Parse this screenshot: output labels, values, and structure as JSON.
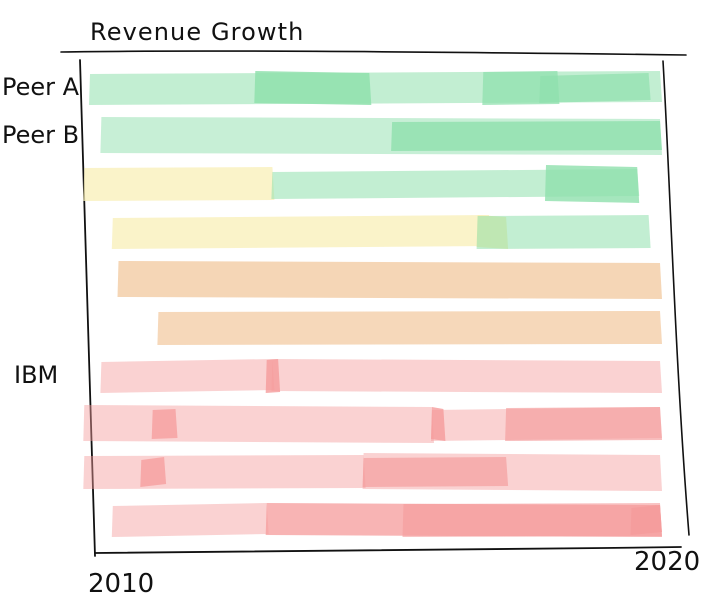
{
  "chart_data": {
    "type": "bar",
    "title": "Revenue Growth",
    "xlabel": "",
    "ylabel": "",
    "x_ticks": [
      "2010",
      "2020"
    ],
    "xlim": [
      2010,
      2020
    ],
    "row_labels": [
      {
        "row": 0,
        "label": "Peer A"
      },
      {
        "row": 1,
        "label": "Peer B"
      },
      {
        "row": 6,
        "label": "IBM"
      }
    ],
    "colors": {
      "positive": "#8fe0ad",
      "neutral": "#f8efb7",
      "warning": "#f2c89d",
      "negative": "#f59b9b",
      "axis": "#111111",
      "background": "#ffffff"
    },
    "rows": [
      {
        "row": 0,
        "segments": [
          {
            "start": 2010.0,
            "end": 2020.0,
            "tone": "positive",
            "opacity": 0.55
          },
          {
            "start": 2012.9,
            "end": 2014.9,
            "tone": "positive",
            "opacity": 0.85
          },
          {
            "start": 2016.9,
            "end": 2018.2,
            "tone": "positive",
            "opacity": 0.75
          },
          {
            "start": 2017.9,
            "end": 2019.8,
            "tone": "positive",
            "opacity": 0.7
          }
        ]
      },
      {
        "row": 1,
        "segments": [
          {
            "start": 2010.2,
            "end": 2020.0,
            "tone": "positive",
            "opacity": 0.5
          },
          {
            "start": 2015.3,
            "end": 2020.0,
            "tone": "positive",
            "opacity": 0.8
          }
        ]
      },
      {
        "row": 2,
        "segments": [
          {
            "start": 2009.9,
            "end": 2013.2,
            "tone": "neutral",
            "opacity": 0.75
          },
          {
            "start": 2013.2,
            "end": 2019.6,
            "tone": "positive",
            "opacity": 0.55
          },
          {
            "start": 2018.0,
            "end": 2019.6,
            "tone": "positive",
            "opacity": 0.8
          }
        ]
      },
      {
        "row": 3,
        "segments": [
          {
            "start": 2010.4,
            "end": 2017.0,
            "tone": "neutral",
            "opacity": 0.75
          },
          {
            "start": 2016.8,
            "end": 2017.3,
            "tone": "neutral",
            "opacity": 0.95
          },
          {
            "start": 2016.8,
            "end": 2019.8,
            "tone": "positive",
            "opacity": 0.55
          }
        ]
      },
      {
        "row": 4,
        "segments": [
          {
            "start": 2010.5,
            "end": 2020.0,
            "tone": "warning",
            "opacity": 0.75
          }
        ]
      },
      {
        "row": 5,
        "segments": [
          {
            "start": 2011.2,
            "end": 2020.0,
            "tone": "warning",
            "opacity": 0.7
          }
        ]
      },
      {
        "row": 6,
        "segments": [
          {
            "start": 2010.2,
            "end": 2013.2,
            "tone": "negative",
            "opacity": 0.45
          },
          {
            "start": 2013.2,
            "end": 2020.0,
            "tone": "negative",
            "opacity": 0.45
          },
          {
            "start": 2013.1,
            "end": 2013.3,
            "tone": "negative",
            "opacity": 0.8
          }
        ]
      },
      {
        "row": 7,
        "segments": [
          {
            "start": 2009.9,
            "end": 2016.0,
            "tone": "negative",
            "opacity": 0.45
          },
          {
            "start": 2011.1,
            "end": 2011.5,
            "tone": "negative",
            "opacity": 0.75
          },
          {
            "start": 2016.0,
            "end": 2020.0,
            "tone": "negative",
            "opacity": 0.45
          },
          {
            "start": 2016.0,
            "end": 2016.2,
            "tone": "negative",
            "opacity": 0.8
          },
          {
            "start": 2017.3,
            "end": 2020.0,
            "tone": "negative",
            "opacity": 0.65
          }
        ]
      },
      {
        "row": 8,
        "segments": [
          {
            "start": 2009.9,
            "end": 2014.8,
            "tone": "negative",
            "opacity": 0.45
          },
          {
            "start": 2010.9,
            "end": 2011.3,
            "tone": "negative",
            "opacity": 0.75
          },
          {
            "start": 2014.8,
            "end": 2020.0,
            "tone": "negative",
            "opacity": 0.45
          },
          {
            "start": 2014.8,
            "end": 2017.3,
            "tone": "negative",
            "opacity": 0.65
          }
        ]
      },
      {
        "row": 9,
        "segments": [
          {
            "start": 2010.4,
            "end": 2013.1,
            "tone": "negative",
            "opacity": 0.45
          },
          {
            "start": 2013.1,
            "end": 2020.0,
            "tone": "negative",
            "opacity": 0.75
          },
          {
            "start": 2015.5,
            "end": 2020.0,
            "tone": "negative",
            "opacity": 0.6
          },
          {
            "start": 2019.5,
            "end": 2020.0,
            "tone": "negative",
            "opacity": 0.8
          }
        ]
      }
    ]
  }
}
